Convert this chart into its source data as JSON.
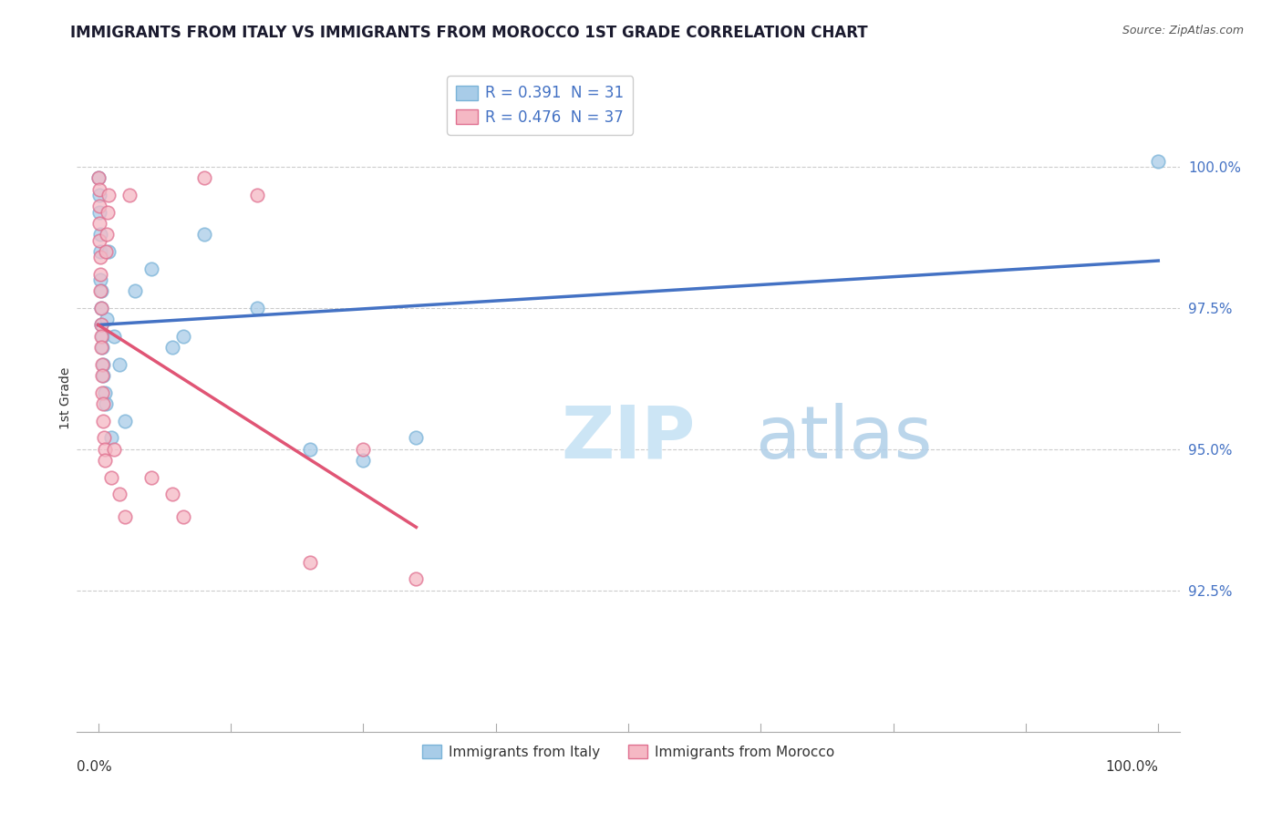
{
  "title": "IMMIGRANTS FROM ITALY VS IMMIGRANTS FROM MOROCCO 1ST GRADE CORRELATION CHART",
  "source_text": "Source: ZipAtlas.com",
  "ylabel": "1st Grade",
  "ytick_values": [
    92.5,
    95.0,
    97.5,
    100.0
  ],
  "ytick_labels": [
    "92.5%",
    "95.0%",
    "97.5%",
    "100.0%"
  ],
  "ymin": 90.0,
  "ymax": 101.8,
  "xmin": -2,
  "xmax": 102,
  "legend_italy": "R = 0.391  N = 31",
  "legend_morocco": "R = 0.476  N = 37",
  "italy_line_color": "#4472c4",
  "morocco_line_color": "#e05575",
  "italy_face_color": "#a8cce8",
  "italy_edge_color": "#7ab3d8",
  "morocco_face_color": "#f5b8c4",
  "morocco_edge_color": "#e07090",
  "watermark_color": "#cce5f5",
  "italy_x": [
    0.05,
    0.1,
    0.15,
    0.18,
    0.2,
    0.22,
    0.25,
    0.28,
    0.3,
    0.35,
    0.4,
    0.45,
    0.5,
    0.6,
    0.7,
    0.8,
    1.0,
    1.2,
    1.5,
    2.0,
    2.5,
    3.5,
    5.0,
    7.0,
    8.0,
    10.0,
    15.0,
    20.0,
    25.0,
    30.0,
    100.0
  ],
  "italy_y": [
    99.8,
    99.5,
    99.2,
    98.8,
    98.5,
    98.0,
    97.8,
    97.5,
    97.2,
    97.0,
    96.8,
    96.5,
    96.3,
    96.0,
    95.8,
    97.3,
    98.5,
    95.2,
    97.0,
    96.5,
    95.5,
    97.8,
    98.2,
    96.8,
    97.0,
    98.8,
    97.5,
    95.0,
    94.8,
    95.2,
    100.1
  ],
  "morocco_x": [
    0.05,
    0.08,
    0.1,
    0.12,
    0.15,
    0.18,
    0.2,
    0.22,
    0.25,
    0.28,
    0.3,
    0.32,
    0.35,
    0.38,
    0.4,
    0.45,
    0.5,
    0.55,
    0.6,
    0.65,
    0.7,
    0.8,
    0.9,
    1.0,
    1.2,
    1.5,
    2.0,
    2.5,
    3.0,
    5.0,
    7.0,
    8.0,
    10.0,
    15.0,
    20.0,
    25.0,
    30.0
  ],
  "morocco_y": [
    99.8,
    99.6,
    99.3,
    99.0,
    98.7,
    98.4,
    98.1,
    97.8,
    97.5,
    97.2,
    97.0,
    96.8,
    96.5,
    96.3,
    96.0,
    95.8,
    95.5,
    95.2,
    95.0,
    94.8,
    98.5,
    98.8,
    99.2,
    99.5,
    94.5,
    95.0,
    94.2,
    93.8,
    99.5,
    94.5,
    94.2,
    93.8,
    99.8,
    99.5,
    93.0,
    95.0,
    92.7
  ],
  "bottom_legend_italy": "Immigrants from Italy",
  "bottom_legend_morocco": "Immigrants from Morocco"
}
